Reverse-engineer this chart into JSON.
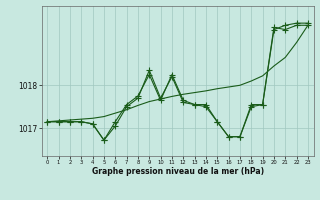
{
  "x": [
    0,
    1,
    2,
    3,
    4,
    5,
    6,
    7,
    8,
    9,
    10,
    11,
    12,
    13,
    14,
    15,
    16,
    17,
    18,
    19,
    20,
    21,
    22,
    23
  ],
  "line1": [
    1017.15,
    1017.15,
    1017.15,
    1017.15,
    1017.1,
    1016.72,
    1017.15,
    1017.55,
    1017.75,
    1018.25,
    1017.65,
    1018.25,
    1017.65,
    1017.55,
    1017.55,
    1017.15,
    1016.8,
    1016.8,
    1017.55,
    1017.55,
    1019.3,
    1019.4,
    1019.45,
    1019.45
  ],
  "line2": [
    1017.15,
    1017.15,
    1017.15,
    1017.15,
    1017.1,
    1016.72,
    1017.05,
    1017.5,
    1017.7,
    1018.35,
    1017.7,
    1018.2,
    1017.6,
    1017.55,
    1017.5,
    1017.15,
    1016.8,
    1016.8,
    1017.5,
    1017.55,
    1019.35,
    1019.3,
    1019.4,
    1019.4
  ],
  "trend": [
    1017.15,
    1017.17,
    1017.19,
    1017.21,
    1017.23,
    1017.27,
    1017.35,
    1017.43,
    1017.53,
    1017.62,
    1017.68,
    1017.74,
    1017.79,
    1017.83,
    1017.87,
    1017.92,
    1017.96,
    1018.0,
    1018.1,
    1018.22,
    1018.45,
    1018.65,
    1019.0,
    1019.4
  ],
  "background_color": "#c8e8e0",
  "grid_color": "#a0c8c0",
  "line_color": "#1a5c1a",
  "ylabel_values": [
    1017,
    1018
  ],
  "xlabel": "Graphe pression niveau de la mer (hPa)",
  "ylim_min": 1016.35,
  "ylim_max": 1019.85,
  "marker": "+",
  "marker_size": 4.0,
  "line_width": 0.8
}
